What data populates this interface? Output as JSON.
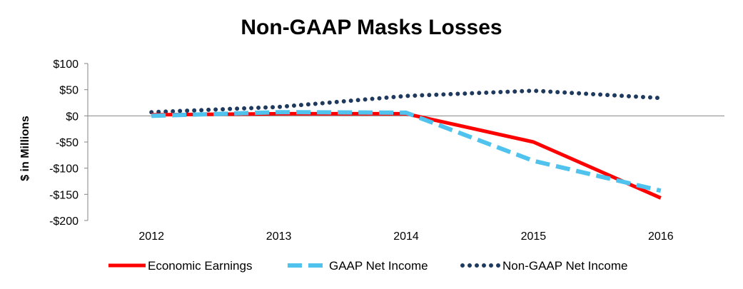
{
  "chart_data": {
    "type": "line",
    "title": "Non-GAAP Masks Losses",
    "ylabel": "$ in Millions",
    "xlabel": "",
    "categories": [
      "2012",
      "2013",
      "2014",
      "2015",
      "2016"
    ],
    "ylim": [
      -200,
      100
    ],
    "yticks": [
      100,
      50,
      0,
      -50,
      -100,
      -150,
      -200
    ],
    "ytick_labels": [
      "$100",
      "$50",
      "$0",
      "-$50",
      "-$100",
      "-$150",
      "-$200"
    ],
    "legend_position": "bottom",
    "series": [
      {
        "name": "Economic Earnings",
        "values": [
          2,
          4,
          4,
          -50,
          -157
        ],
        "color": "#ff0000",
        "style": "solid"
      },
      {
        "name": "GAAP Net Income",
        "values": [
          0,
          7,
          6,
          -86,
          -143
        ],
        "color": "#4fc3ee",
        "style": "dashed"
      },
      {
        "name": "Non-GAAP Net Income",
        "values": [
          7,
          17,
          38,
          48,
          34
        ],
        "color": "#1f3a5f",
        "style": "dotted"
      }
    ]
  }
}
